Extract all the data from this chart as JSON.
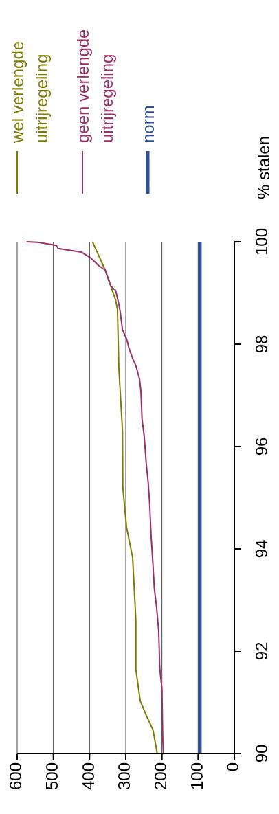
{
  "chart_data": {
    "type": "line",
    "ylabel": "% stalen",
    "xlim": [
      600,
      0
    ],
    "xticks": [
      600,
      500,
      400,
      300,
      200,
      100,
      0
    ],
    "ylim": [
      90,
      100
    ],
    "yticks": [
      90,
      92,
      94,
      96,
      98,
      100
    ],
    "grid": "x",
    "legend": "top",
    "marker": "none",
    "line_style": "solid",
    "series": [
      {
        "name": "wel verlengde uitrijregeling",
        "color": "#7f7a00",
        "x": [
          213,
          225,
          243,
          260,
          272,
          272,
          281,
          298,
          308,
          309,
          319,
          323,
          328,
          341,
          357,
          374,
          392
        ],
        "values": [
          90,
          90.47,
          90.74,
          91.03,
          91.64,
          92.6,
          93.83,
          94.43,
          95.2,
          96.31,
          97.52,
          98.68,
          98.86,
          99.13,
          99.45,
          99.72,
          100
        ]
      },
      {
        "name": "geen verlengde uitrijregeling",
        "color": "#9b2d6a",
        "x": [
          196,
          198,
          200,
          206,
          209,
          215,
          221,
          225,
          230,
          234,
          238,
          243,
          249,
          255,
          258,
          262,
          272,
          281,
          291,
          298,
          309,
          315,
          319,
          328,
          341,
          357,
          374,
          398,
          423,
          487,
          492,
          543,
          574
        ],
        "values": [
          90,
          90.36,
          91.26,
          91.66,
          92.4,
          92.87,
          93.22,
          93.72,
          94.26,
          94.89,
          95.3,
          95.64,
          96.2,
          96.54,
          97.07,
          97.32,
          97.58,
          97.72,
          97.92,
          98.11,
          98.28,
          98.62,
          98.78,
          99.05,
          99.13,
          99.45,
          99.53,
          99.69,
          99.8,
          99.87,
          99.93,
          99.99,
          100
        ]
      },
      {
        "name": "norm",
        "color": "#2f4f9a",
        "x": [
          95,
          95
        ],
        "values": [
          90,
          100
        ]
      }
    ]
  }
}
